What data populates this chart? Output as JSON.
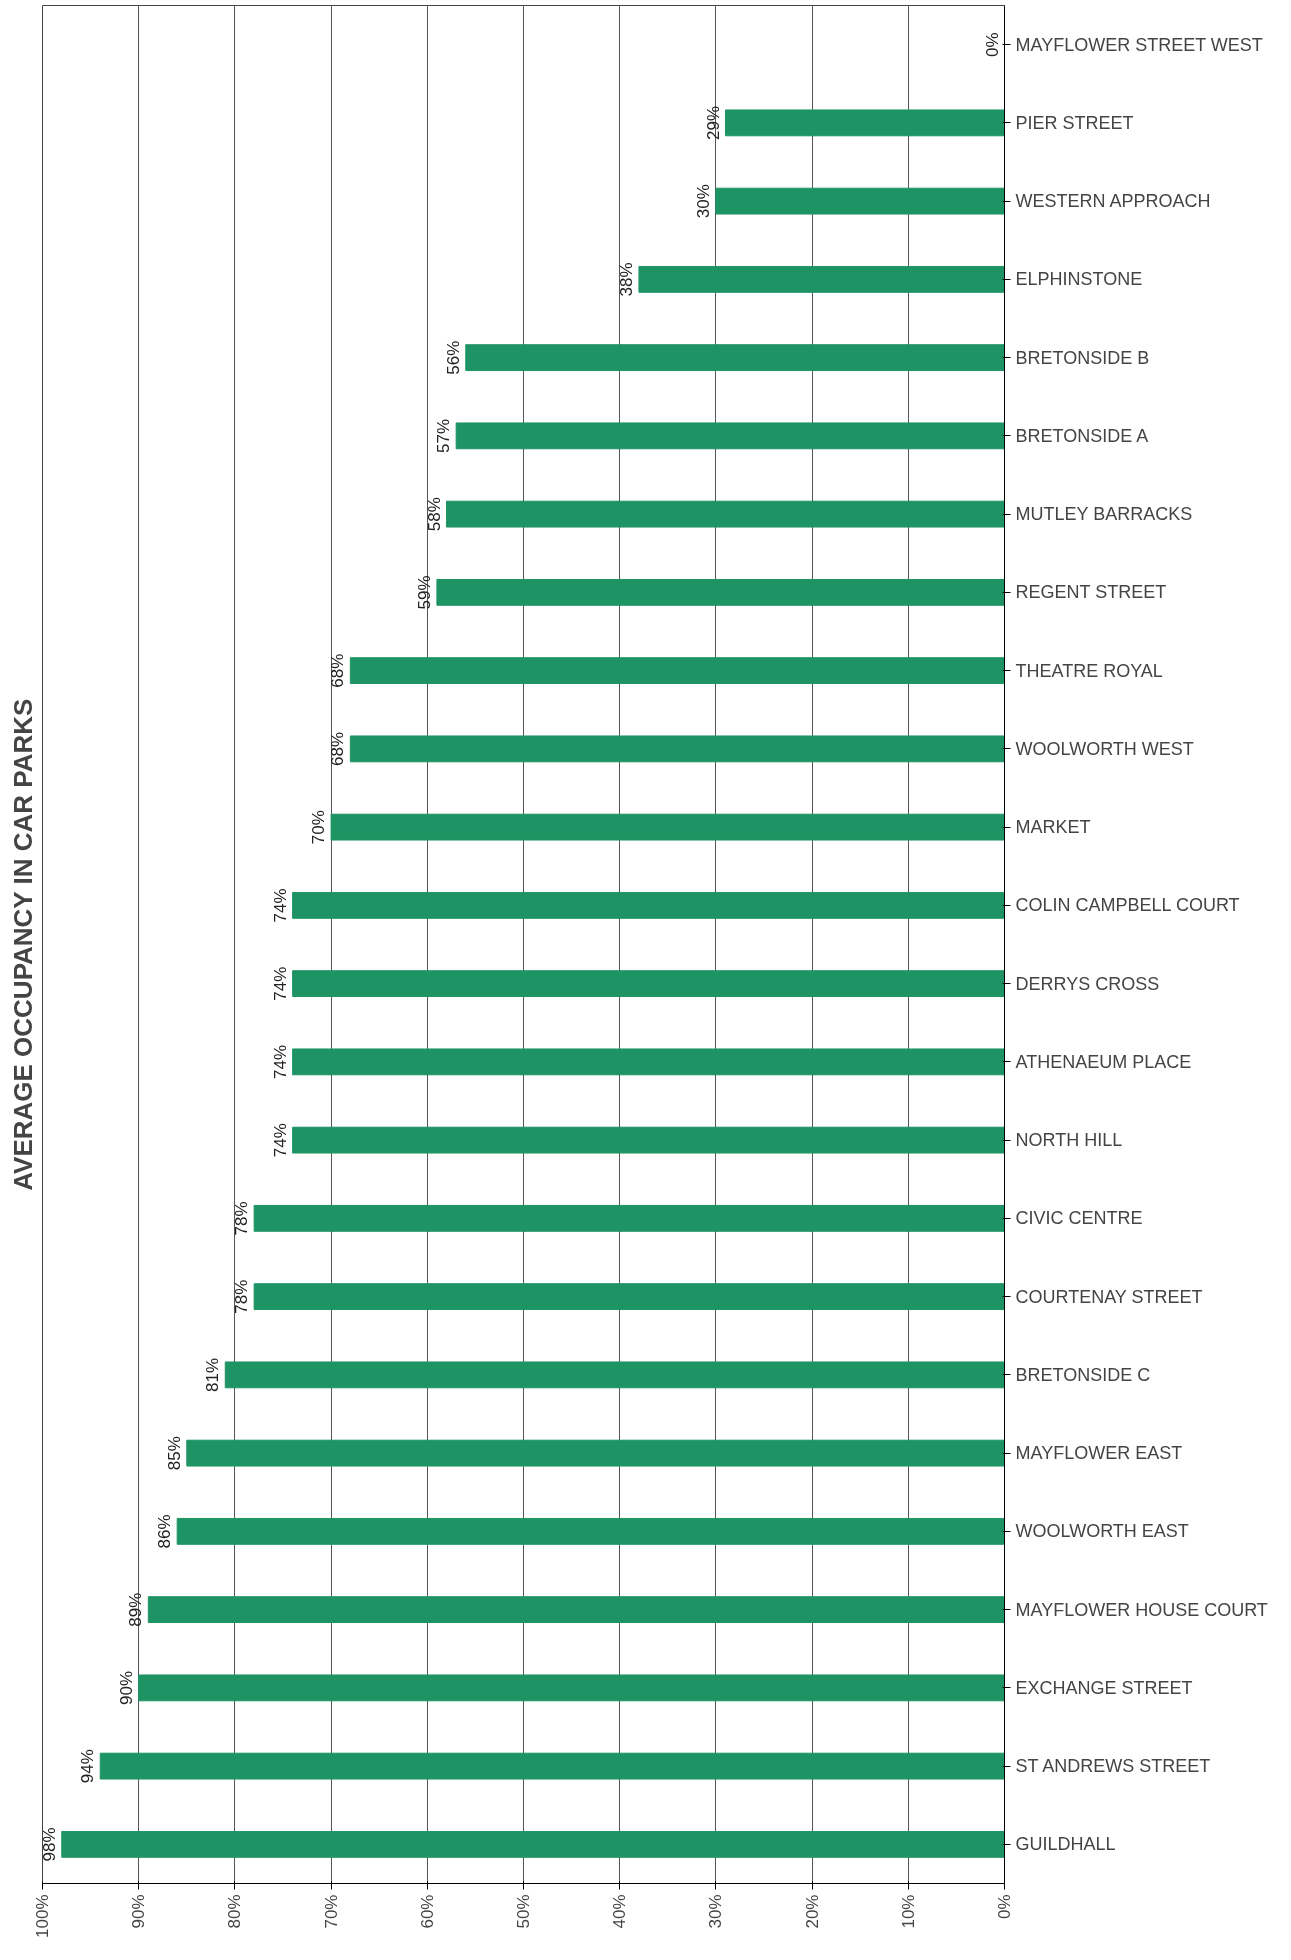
{
  "chart_data": {
    "type": "bar",
    "orientation": "horizontal",
    "title": "AVERAGE OCCUPANCY IN CAR PARKS",
    "categories": [
      "MAYFLOWER STREET WEST",
      "PIER STREET",
      "WESTERN APPROACH",
      "ELPHINSTONE",
      "BRETONSIDE B",
      "BRETONSIDE A",
      "MUTLEY BARRACKS",
      "REGENT STREET",
      "THEATRE ROYAL",
      "WOOLWORTH WEST",
      "MARKET",
      "COLIN CAMPBELL COURT",
      "DERRYS CROSS",
      "ATHENAEUM PLACE",
      "NORTH HILL",
      "CIVIC CENTRE",
      "COURTENAY STREET",
      "BRETONSIDE C",
      "MAYFLOWER EAST",
      "WOOLWORTH EAST",
      "MAYFLOWER HOUSE COURT",
      "EXCHANGE STREET",
      "ST ANDREWS STREET",
      "GUILDHALL"
    ],
    "values": [
      0,
      29,
      30,
      38,
      56,
      57,
      58,
      59,
      68,
      68,
      70,
      74,
      74,
      74,
      74,
      78,
      78,
      81,
      85,
      86,
      89,
      90,
      94,
      98
    ],
    "value_labels": [
      "0%",
      "29%",
      "30%",
      "38%",
      "56%",
      "57%",
      "58%",
      "59%",
      "68%",
      "68%",
      "70%",
      "74%",
      "74%",
      "74%",
      "74%",
      "78%",
      "78%",
      "81%",
      "85%",
      "86%",
      "89%",
      "90%",
      "94%",
      "98%"
    ],
    "color": "#1e9464",
    "xlim": [
      100,
      0
    ],
    "xticks": [
      {
        "value": 100,
        "label": "100%"
      },
      {
        "value": 90,
        "label": "90%"
      },
      {
        "value": 80,
        "label": "80%"
      },
      {
        "value": 70,
        "label": "70%"
      },
      {
        "value": 60,
        "label": "60%"
      },
      {
        "value": 50,
        "label": "50%"
      },
      {
        "value": 40,
        "label": "40%"
      },
      {
        "value": 30,
        "label": "30%"
      },
      {
        "value": 20,
        "label": "20%"
      },
      {
        "value": 10,
        "label": "10%"
      },
      {
        "value": 0,
        "label": "0%"
      }
    ],
    "grid": "x"
  }
}
